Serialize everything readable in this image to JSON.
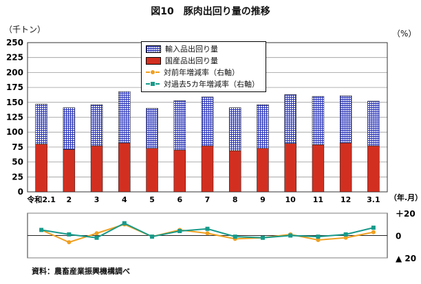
{
  "title": "図10　豚肉出回り量の推移",
  "left_unit": "（千トン）",
  "right_unit": "（%）",
  "x_unit": "（年.月）",
  "source": "資料：農畜産業振興機構調べ",
  "chart_data": [
    {
      "type": "bar",
      "stacked": true,
      "categories": [
        "令和2.1",
        "2",
        "3",
        "4",
        "5",
        "6",
        "7",
        "8",
        "9",
        "10",
        "11",
        "12",
        "3.1"
      ],
      "ylim": [
        0,
        250
      ],
      "yticks": [
        0,
        25,
        50,
        75,
        100,
        125,
        150,
        175,
        200,
        225,
        250
      ],
      "series": [
        {
          "name": "国産品出回り量",
          "color": "#d32f20",
          "values": [
            80,
            71,
            77,
            82,
            73,
            70,
            77,
            69,
            73,
            81,
            79,
            82,
            77
          ]
        },
        {
          "name": "輸入品出回り量",
          "color": "#2b35b7",
          "values": [
            67,
            70,
            69,
            86,
            67,
            83,
            82,
            72,
            73,
            82,
            81,
            79,
            75
          ]
        }
      ],
      "legend": "top-center"
    },
    {
      "type": "line",
      "categories": [
        "令和2.1",
        "2",
        "3",
        "4",
        "5",
        "6",
        "7",
        "8",
        "9",
        "10",
        "11",
        "12",
        "3.1"
      ],
      "ylim": [
        -20,
        20
      ],
      "ytick_labels": [
        "＋20",
        "0",
        "▲ 20"
      ],
      "series": [
        {
          "name": "対前年増減率（右軸）",
          "color": "#f0a020",
          "values": [
            5,
            -6,
            2,
            10,
            -1,
            5,
            2,
            -3,
            -2,
            1,
            -4,
            -2,
            3
          ]
        },
        {
          "name": "対過去5カ年増減率（右軸）",
          "color": "#179a8a",
          "values": [
            5,
            1,
            -2,
            11,
            -1,
            4,
            6,
            -1,
            -2,
            0,
            -1,
            1,
            7
          ]
        }
      ]
    }
  ]
}
